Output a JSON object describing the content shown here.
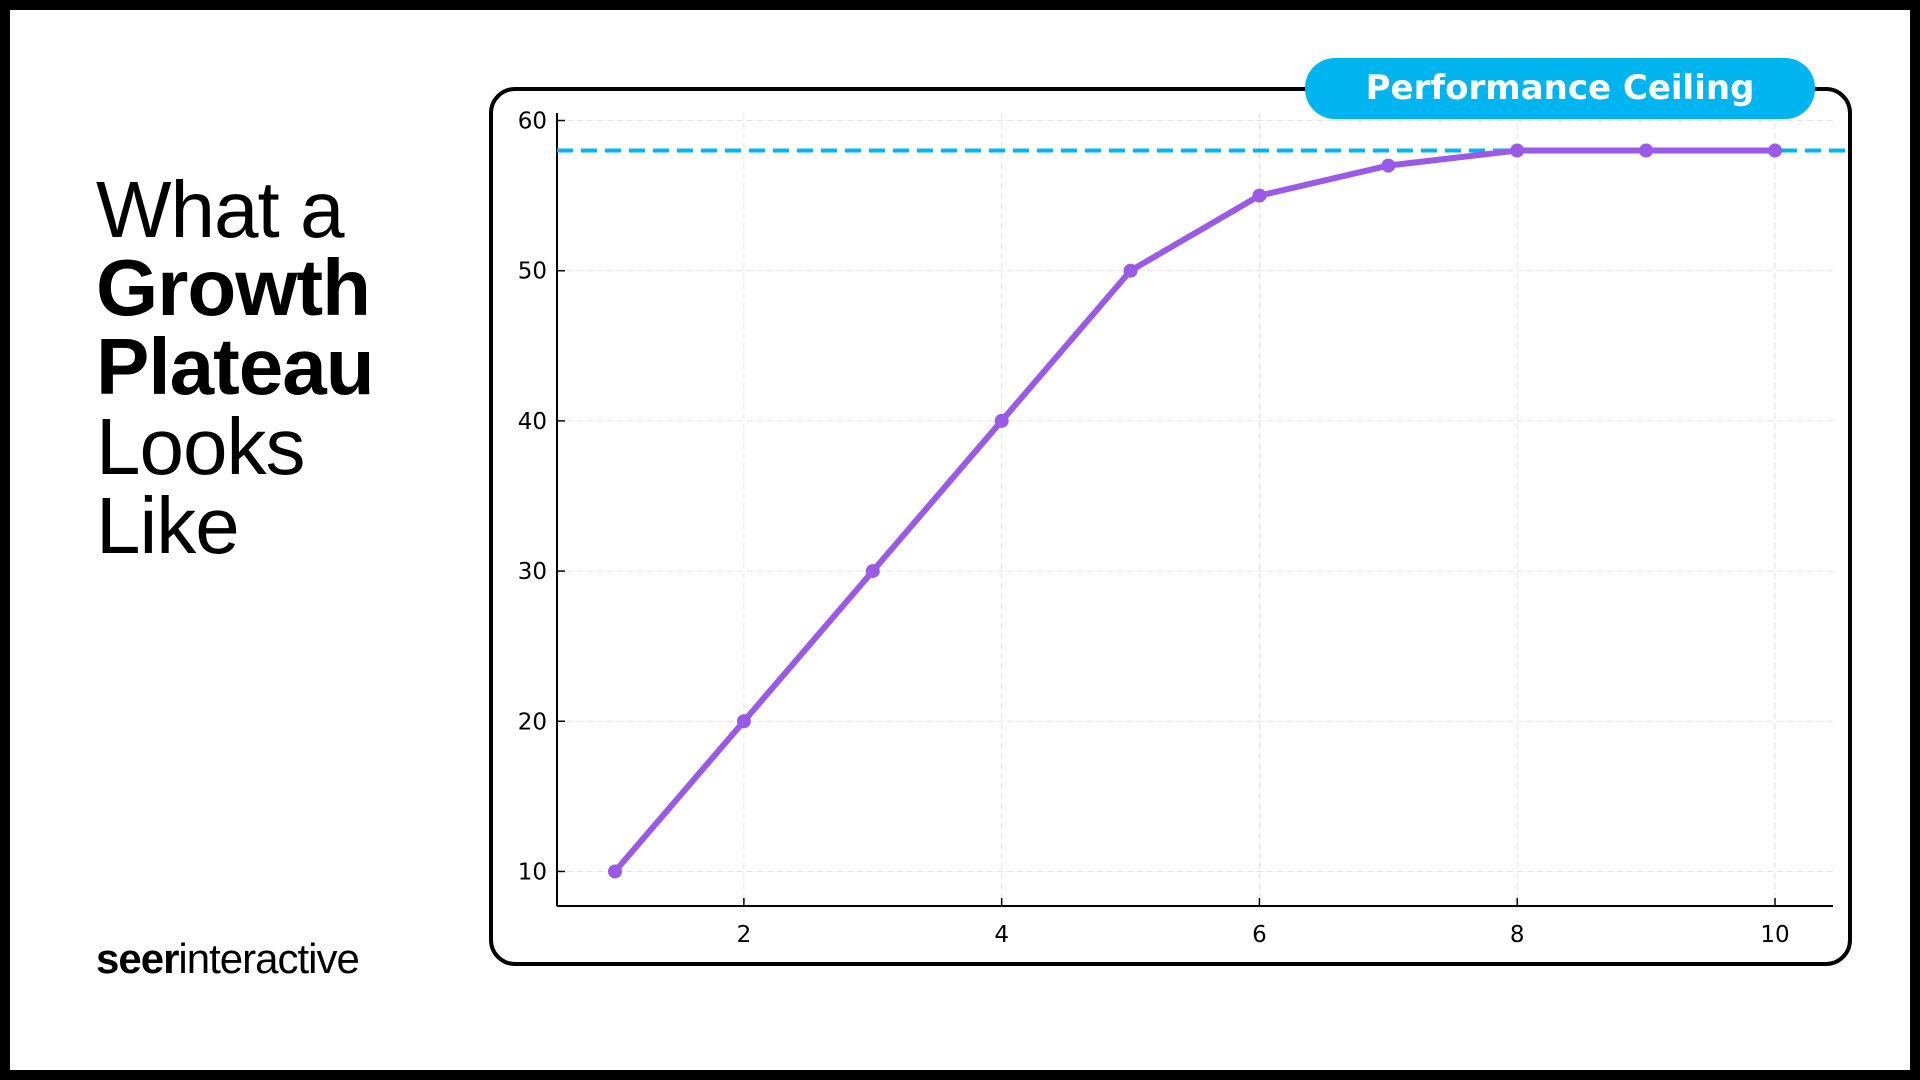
{
  "heading": [
    "What a",
    "Growth",
    "Plateau",
    "Looks",
    "Like"
  ],
  "logo": {
    "bold": "seer",
    "regular": "interactive"
  },
  "chart_data": {
    "type": "line",
    "x": [
      1,
      2,
      3,
      4,
      5,
      6,
      7,
      8,
      9,
      10
    ],
    "series": [
      {
        "color": "#9a5ae6",
        "values": [
          10,
          20,
          30,
          40,
          50,
          55,
          57,
          58,
          58,
          58
        ]
      }
    ],
    "xlim": [
      0.55,
      10.45
    ],
    "xticks": [
      2,
      4,
      6,
      8,
      10
    ],
    "ylim": [
      7.7,
      60.5
    ],
    "yticks": [
      10,
      20,
      30,
      40,
      50,
      60
    ],
    "grid": true,
    "reference_line": {
      "value": 58,
      "label": "Performance Ceiling",
      "color": "#00b4f0"
    }
  }
}
